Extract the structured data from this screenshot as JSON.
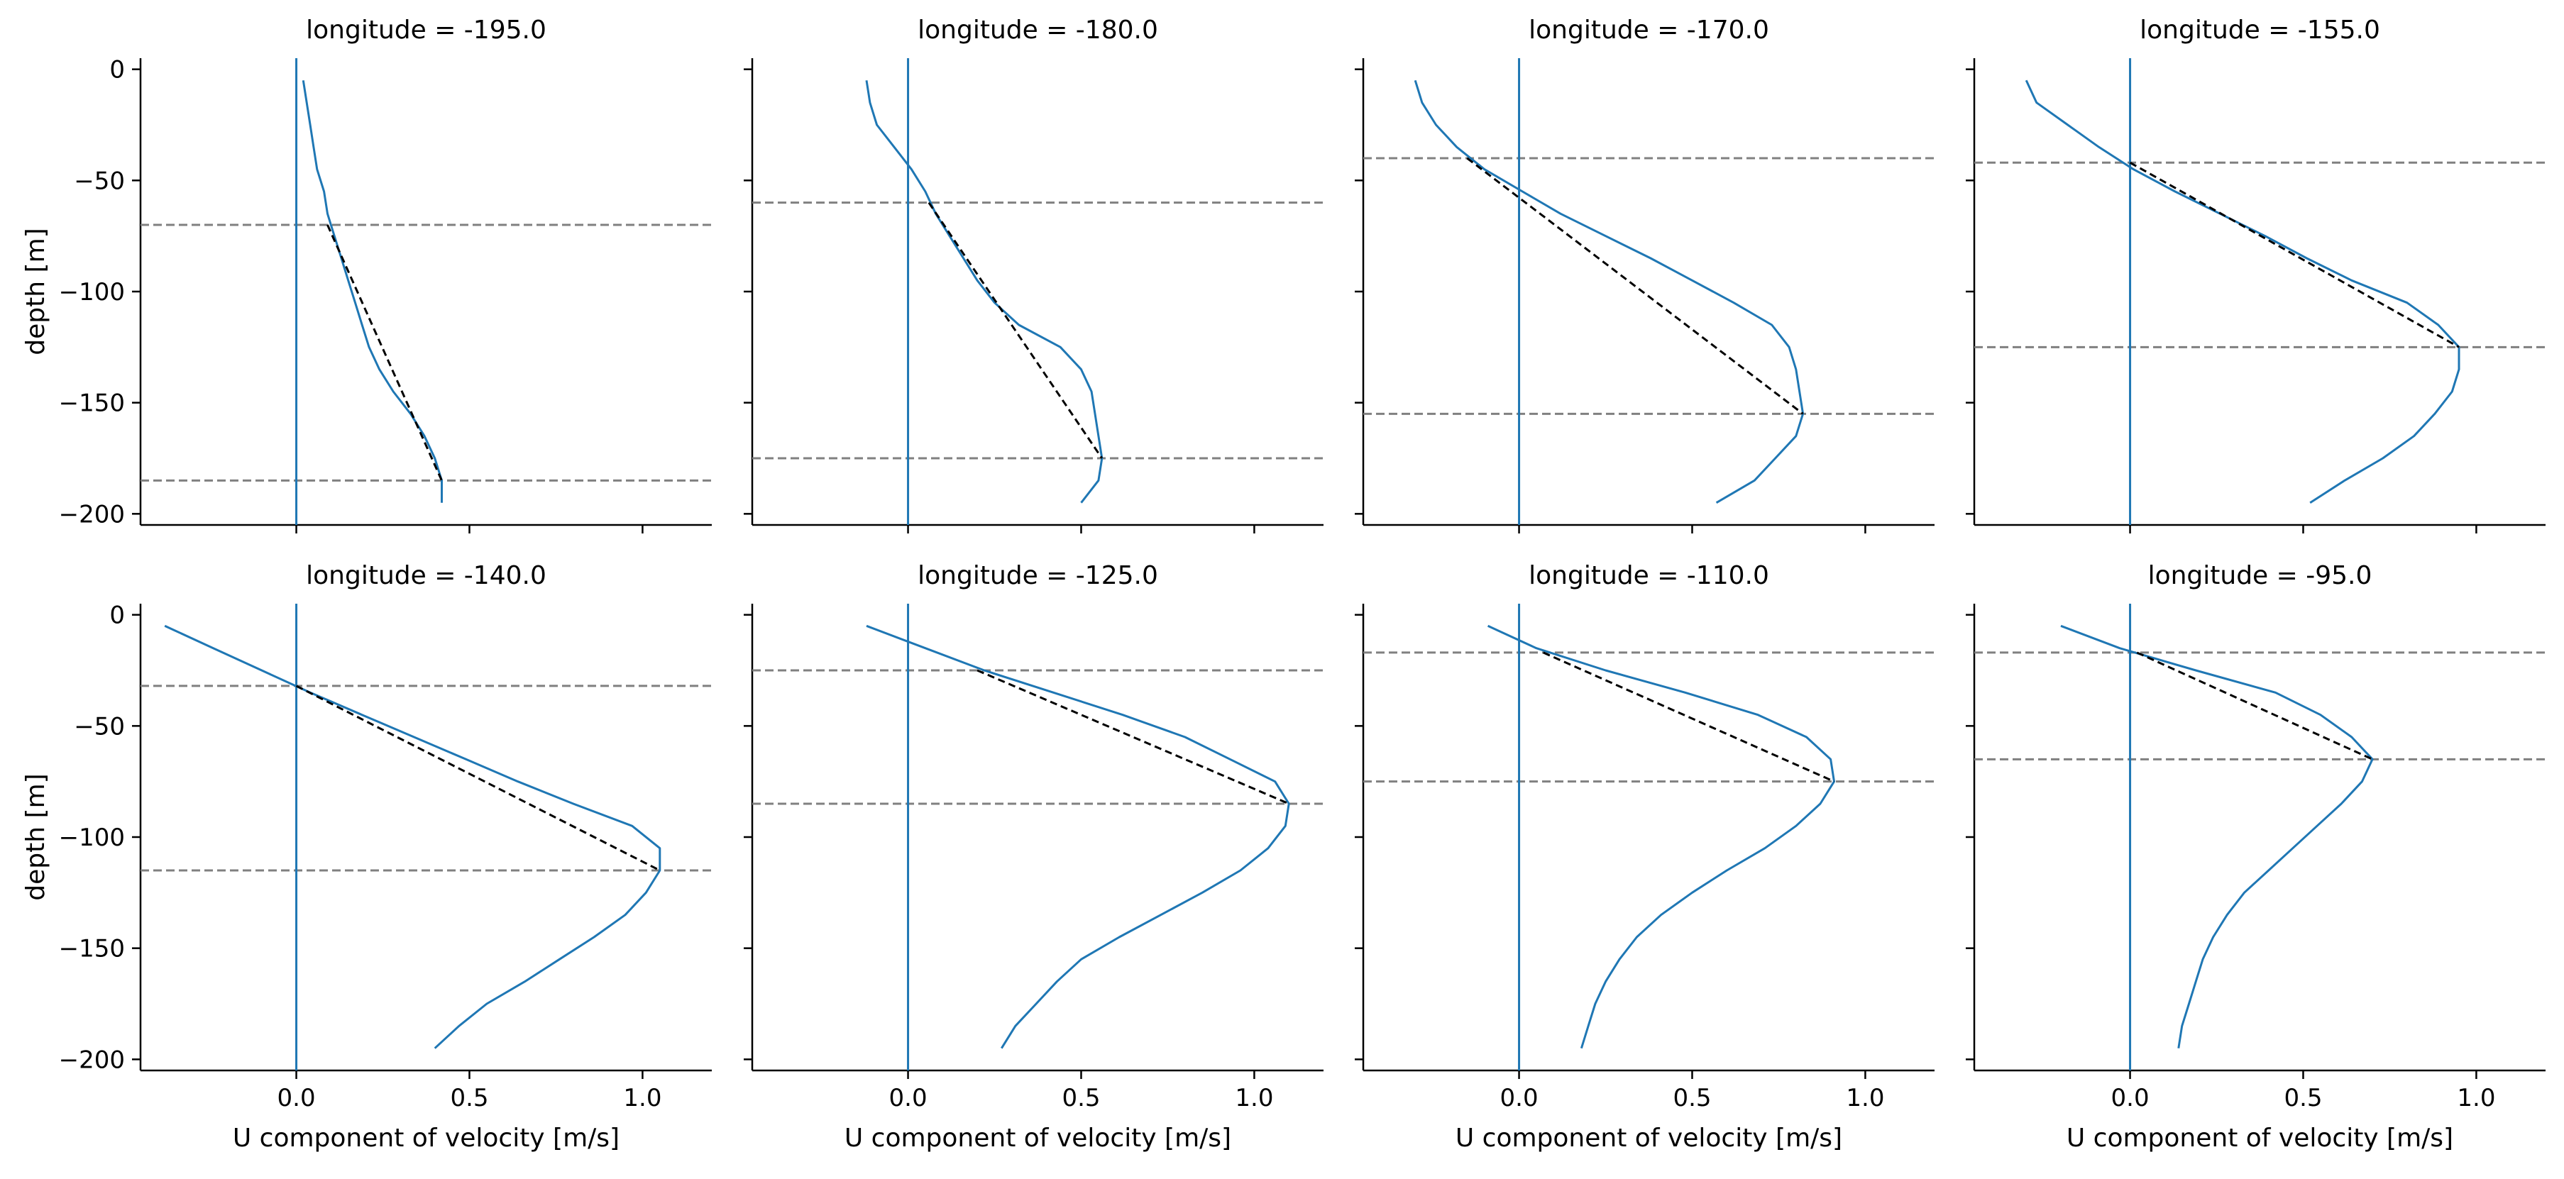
{
  "chart_data": {
    "type": "line",
    "layout": "2x4 grid of small multiples",
    "xlabel": "U component of velocity [m/s]",
    "ylabel": "depth [m]",
    "xlim": [
      -0.45,
      1.2
    ],
    "ylim": [
      -205,
      5
    ],
    "xticks": [
      0.0,
      0.5,
      1.0
    ],
    "xtick_labels": [
      "0.0",
      "0.5",
      "1.0"
    ],
    "yticks": [
      0,
      -50,
      -100,
      -150,
      -200
    ],
    "ytick_labels": [
      "0",
      "−50",
      "−100",
      "−150",
      "−200"
    ],
    "grid": false,
    "colors": {
      "profile": "#1f77b4",
      "zero_line": "#1f77b4",
      "bound_line": "#808080",
      "fit_line": "#000000"
    },
    "panels": [
      {
        "title": "longitude = -195.0",
        "depth": [
          -5,
          -15,
          -25,
          -35,
          -45,
          -55,
          -65,
          -75,
          -85,
          -95,
          -105,
          -115,
          -125,
          -135,
          -145,
          -155,
          -165,
          -175,
          -185,
          -195
        ],
        "u": [
          0.02,
          0.03,
          0.04,
          0.05,
          0.06,
          0.08,
          0.09,
          0.11,
          0.13,
          0.15,
          0.17,
          0.19,
          0.21,
          0.24,
          0.28,
          0.33,
          0.37,
          0.4,
          0.42,
          0.42
        ],
        "upper_bound": -70,
        "lower_bound": -185,
        "fit_line": {
          "x": [
            0.09,
            0.42
          ],
          "y": [
            -70,
            -185
          ]
        }
      },
      {
        "title": "longitude = -180.0",
        "depth": [
          -5,
          -15,
          -25,
          -35,
          -45,
          -55,
          -65,
          -75,
          -85,
          -95,
          -105,
          -115,
          -125,
          -135,
          -145,
          -155,
          -165,
          -175,
          -185,
          -195
        ],
        "u": [
          -0.12,
          -0.11,
          -0.09,
          -0.04,
          0.01,
          0.05,
          0.08,
          0.12,
          0.16,
          0.2,
          0.25,
          0.32,
          0.44,
          0.5,
          0.53,
          0.54,
          0.55,
          0.56,
          0.55,
          0.5
        ],
        "upper_bound": -60,
        "lower_bound": -175,
        "fit_line": {
          "x": [
            0.06,
            0.56
          ],
          "y": [
            -60,
            -175
          ]
        }
      },
      {
        "title": "longitude = -170.0",
        "depth": [
          -5,
          -15,
          -25,
          -35,
          -45,
          -55,
          -65,
          -75,
          -85,
          -95,
          -105,
          -115,
          -125,
          -135,
          -145,
          -155,
          -165,
          -175,
          -185,
          -195
        ],
        "u": [
          -0.3,
          -0.28,
          -0.24,
          -0.18,
          -0.1,
          0.01,
          0.12,
          0.25,
          0.38,
          0.5,
          0.62,
          0.73,
          0.78,
          0.8,
          0.81,
          0.82,
          0.8,
          0.74,
          0.68,
          0.57
        ],
        "upper_bound": -40,
        "lower_bound": -155,
        "fit_line": {
          "x": [
            -0.15,
            0.82
          ],
          "y": [
            -40,
            -155
          ]
        }
      },
      {
        "title": "longitude = -155.0",
        "depth": [
          -5,
          -15,
          -25,
          -35,
          -45,
          -55,
          -65,
          -75,
          -85,
          -95,
          -105,
          -115,
          -125,
          -135,
          -145,
          -155,
          -165,
          -175,
          -185,
          -195
        ],
        "u": [
          -0.3,
          -0.27,
          -0.18,
          -0.09,
          0.01,
          0.13,
          0.26,
          0.39,
          0.51,
          0.64,
          0.8,
          0.89,
          0.95,
          0.95,
          0.93,
          0.88,
          0.82,
          0.73,
          0.62,
          0.52
        ],
        "upper_bound": -42,
        "lower_bound": -125,
        "fit_line": {
          "x": [
            0.0,
            0.95
          ],
          "y": [
            -42,
            -125
          ]
        }
      },
      {
        "title": "longitude = -140.0",
        "depth": [
          -5,
          -15,
          -25,
          -35,
          -45,
          -55,
          -65,
          -75,
          -85,
          -95,
          -105,
          -115,
          -125,
          -135,
          -145,
          -155,
          -165,
          -175,
          -185,
          -195
        ],
        "u": [
          -0.38,
          -0.24,
          -0.1,
          0.04,
          0.19,
          0.34,
          0.49,
          0.64,
          0.8,
          0.97,
          1.05,
          1.05,
          1.01,
          0.95,
          0.86,
          0.76,
          0.66,
          0.55,
          0.47,
          0.4
        ],
        "upper_bound": -32,
        "lower_bound": -115,
        "fit_line": {
          "x": [
            0.0,
            1.05
          ],
          "y": [
            -32,
            -115
          ]
        }
      },
      {
        "title": "longitude = -125.0",
        "depth": [
          -5,
          -15,
          -25,
          -35,
          -45,
          -55,
          -65,
          -75,
          -85,
          -95,
          -105,
          -115,
          -125,
          -135,
          -145,
          -155,
          -165,
          -175,
          -185,
          -195
        ],
        "u": [
          -0.12,
          0.05,
          0.22,
          0.42,
          0.62,
          0.8,
          0.93,
          1.06,
          1.1,
          1.09,
          1.04,
          0.96,
          0.85,
          0.73,
          0.61,
          0.5,
          0.43,
          0.37,
          0.31,
          0.27
        ],
        "upper_bound": -25,
        "lower_bound": -85,
        "fit_line": {
          "x": [
            0.2,
            1.1
          ],
          "y": [
            -25,
            -85
          ]
        }
      },
      {
        "title": "longitude = -110.0",
        "depth": [
          -5,
          -15,
          -25,
          -35,
          -45,
          -55,
          -65,
          -75,
          -85,
          -95,
          -105,
          -115,
          -125,
          -135,
          -145,
          -155,
          -165,
          -175,
          -185,
          -195
        ],
        "u": [
          -0.09,
          0.05,
          0.25,
          0.48,
          0.69,
          0.83,
          0.9,
          0.91,
          0.87,
          0.8,
          0.71,
          0.6,
          0.5,
          0.41,
          0.34,
          0.29,
          0.25,
          0.22,
          0.2,
          0.18
        ],
        "upper_bound": -17,
        "lower_bound": -75,
        "fit_line": {
          "x": [
            0.07,
            0.91
          ],
          "y": [
            -17,
            -75
          ]
        }
      },
      {
        "title": "longitude = -95.0",
        "depth": [
          -5,
          -15,
          -25,
          -35,
          -45,
          -55,
          -65,
          -75,
          -85,
          -95,
          -105,
          -115,
          -125,
          -135,
          -145,
          -155,
          -165,
          -175,
          -185,
          -195
        ],
        "u": [
          -0.2,
          -0.03,
          0.19,
          0.42,
          0.55,
          0.64,
          0.7,
          0.67,
          0.61,
          0.54,
          0.47,
          0.4,
          0.33,
          0.28,
          0.24,
          0.21,
          0.19,
          0.17,
          0.15,
          0.14
        ],
        "upper_bound": -17,
        "lower_bound": -65,
        "fit_line": {
          "x": [
            0.02,
            0.7
          ],
          "y": [
            -17,
            -65
          ]
        }
      }
    ]
  }
}
